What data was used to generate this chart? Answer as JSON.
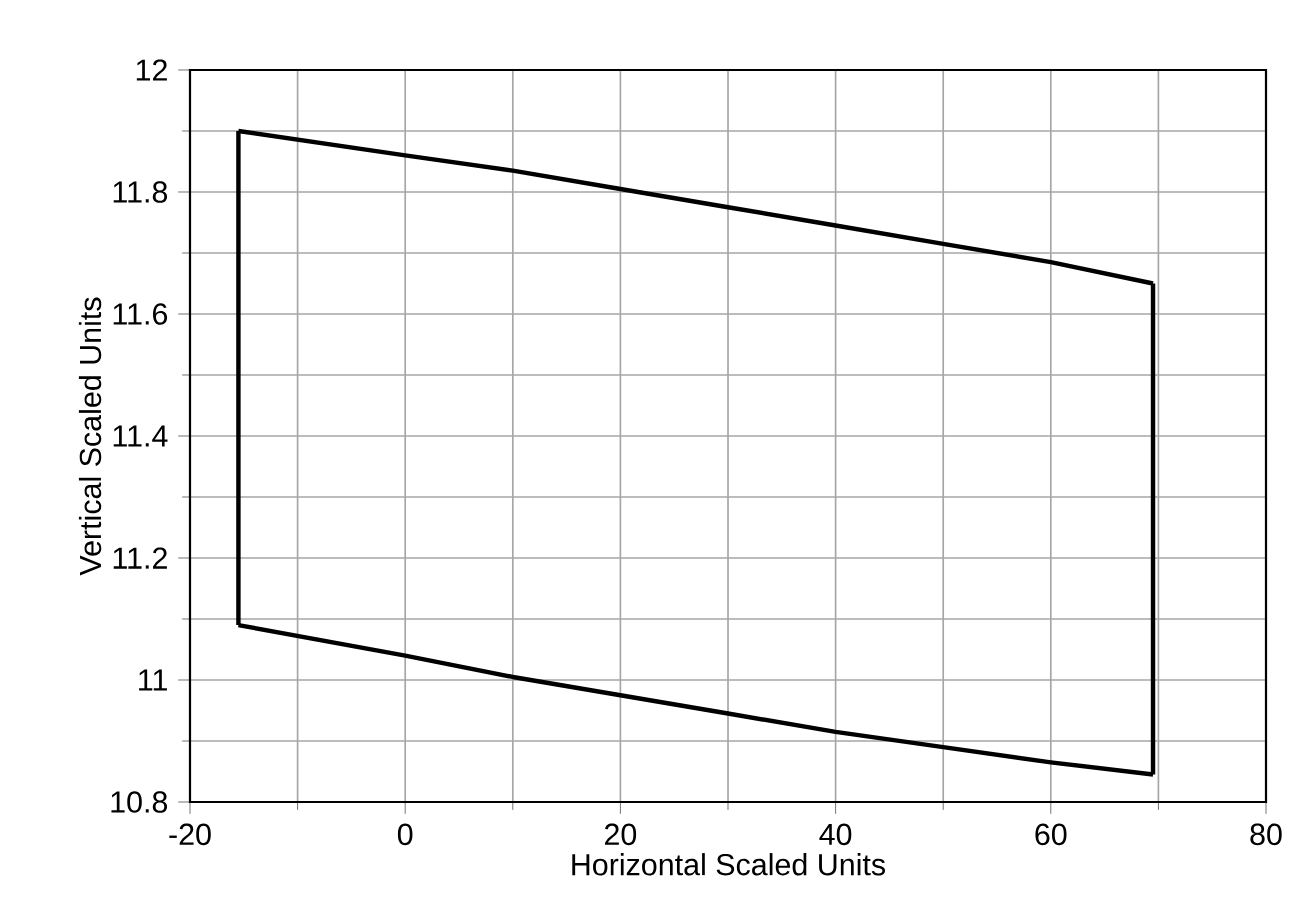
{
  "chart_data": {
    "type": "line",
    "xlabel": "Horizontal Scaled Units",
    "ylabel": "Vertical Scaled Units",
    "xlim": [
      -20,
      80
    ],
    "ylim": [
      10.8,
      12
    ],
    "xticks": [
      -20,
      0,
      20,
      40,
      60,
      80
    ],
    "yticks": [
      10.8,
      11,
      11.2,
      11.4,
      11.6,
      11.8,
      12
    ],
    "grid": true,
    "marker": "none",
    "line_style": "solid",
    "series": [
      {
        "color": "#000000",
        "x": [
          -15.5,
          0,
          10,
          20,
          30,
          40,
          50,
          60,
          69.5
        ],
        "values": [
          11.9,
          11.86,
          11.835,
          11.805,
          11.775,
          11.745,
          11.715,
          11.685,
          11.65
        ]
      },
      {
        "color": "#000000",
        "x": [
          69.5,
          69.5
        ],
        "values": [
          11.65,
          10.845
        ]
      },
      {
        "color": "#000000",
        "x": [
          -15.5,
          0,
          10,
          20,
          30,
          40,
          50,
          60,
          69.5
        ],
        "values": [
          11.09,
          11.04,
          11.005,
          10.975,
          10.945,
          10.915,
          10.89,
          10.865,
          10.845
        ]
      },
      {
        "color": "#000000",
        "x": [
          -15.5,
          -15.5
        ],
        "values": [
          11.09,
          11.9
        ]
      }
    ]
  }
}
